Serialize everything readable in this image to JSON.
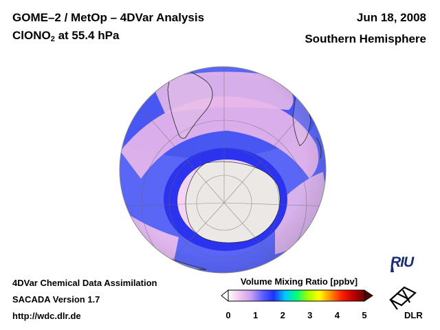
{
  "header": {
    "title_line1": "GOME–2 / MetOp – 4DVar Analysis",
    "species_main": "ClONO",
    "species_sub": "2",
    "species_rest": " at 55.4 hPa",
    "date": "Jun 18, 2008",
    "region": "Southern Hemisphere"
  },
  "footer": {
    "line1": "4DVar Chemical Data Assimilation",
    "line2": "SACADA Version 1.7",
    "line3": "http://wdc.dlr.de"
  },
  "colorbar": {
    "title": "Volume Mixing Ratio [ppbv]",
    "ticks": [
      "0",
      "1",
      "2",
      "3",
      "4",
      "5"
    ],
    "min": 0,
    "max": 5,
    "colors": [
      "#ffffff",
      "#f0c8f0",
      "#c8a0f0",
      "#6060ff",
      "#2030ff",
      "#00c8ff",
      "#00ff80",
      "#a0ff00",
      "#ffff00",
      "#ff9000",
      "#ff2000",
      "#c00000",
      "#700000"
    ]
  },
  "logos": {
    "riu": "RIU",
    "dlr": "DLR"
  },
  "map_colors": {
    "ocean_high": "#f2c4ee",
    "band_blue": "#4a5cf8",
    "deep_blue": "#2d35f0",
    "antarctica": "#ece8e6",
    "land": "#e8cfe2"
  }
}
